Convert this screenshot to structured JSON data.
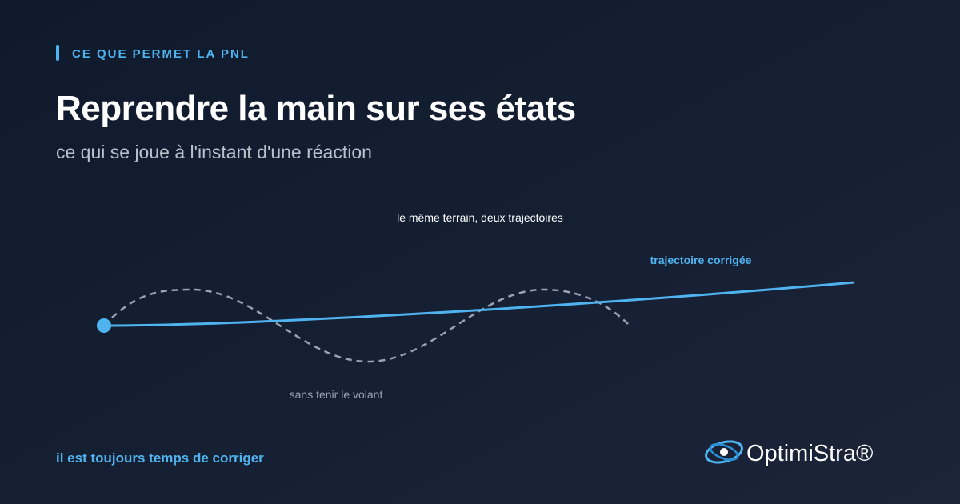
{
  "eyebrow": "CE QUE PERMET LA PNL",
  "title": "Reprendre la main sur ses états",
  "subtitle": "ce qui se joue à l'instant d'une réaction",
  "diagram": {
    "caption": "le même terrain, deux trajectoires",
    "corrected_label": "trajectoire corrigée",
    "uncorrected_label": "sans tenir le volant"
  },
  "footer": {
    "tagline": "il est toujours temps de corriger",
    "brand": "OptimiStra®"
  }
}
